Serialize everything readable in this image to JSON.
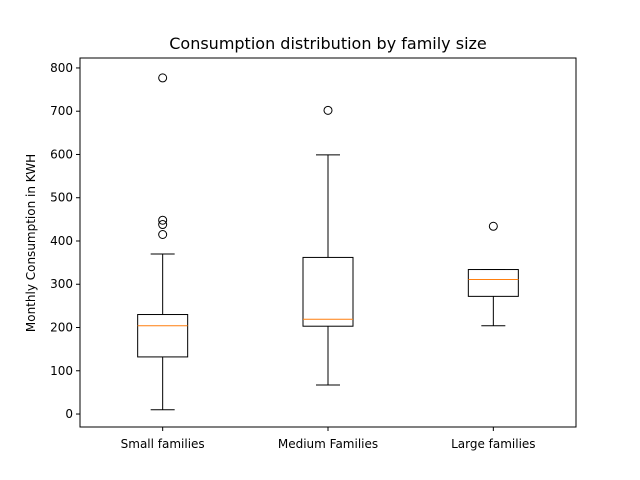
{
  "chart_data": {
    "type": "box",
    "title": "Consumption distribution by family size",
    "xlabel": "",
    "ylabel": "Monthly Consumption in KWH",
    "ylim": [
      -30,
      823
    ],
    "yticks": [
      0,
      100,
      200,
      300,
      400,
      500,
      600,
      700,
      800
    ],
    "grid": false,
    "categories": [
      "Small families",
      "Medium Families",
      "Large families"
    ],
    "boxes": [
      {
        "whisker_low": 10,
        "q1": 132,
        "median": 204,
        "q3": 230,
        "whisker_high": 370,
        "outliers": [
          415,
          438,
          448,
          777
        ]
      },
      {
        "whisker_low": 67,
        "q1": 203,
        "median": 219,
        "q3": 362,
        "whisker_high": 599,
        "outliers": [
          702
        ]
      },
      {
        "whisker_low": 204,
        "q1": 272,
        "median": 311,
        "q3": 334,
        "whisker_high": 334,
        "outliers": [
          434
        ]
      }
    ],
    "colors": {
      "box": "#000000",
      "median": "#ff7f0e",
      "outlier": "#000000"
    }
  }
}
